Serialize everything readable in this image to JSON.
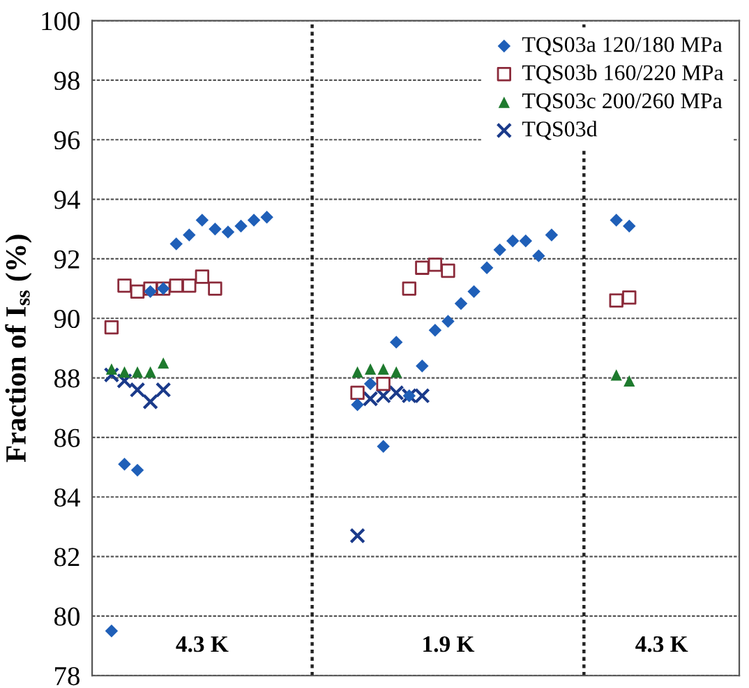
{
  "chart_data": {
    "type": "scatter",
    "ylabel": "Fraction of I$_{ss}$ (%)",
    "ylim": [
      78,
      100
    ],
    "yticks": [
      78,
      80,
      82,
      84,
      86,
      88,
      90,
      92,
      94,
      96,
      98,
      100
    ],
    "tick_labels": "y",
    "grid": "y",
    "legend": "top right",
    "annotations": [
      "4.3 K",
      "1.9 K",
      "4.3 K"
    ],
    "categories": [
      null,
      null,
      null,
      null,
      null,
      null,
      null,
      null,
      null,
      null,
      null,
      null,
      null,
      null,
      null,
      null,
      null,
      null,
      null,
      null,
      null,
      null,
      null,
      null,
      null,
      null,
      null,
      null,
      null,
      null,
      null,
      null,
      null,
      null,
      null,
      null,
      null,
      null,
      null,
      null,
      null,
      null,
      null,
      null,
      null,
      null,
      null,
      null,
      null,
      null
    ],
    "series": [
      {
        "name": "TQS03a 120/180 MPa",
        "color": "#1f5fb8",
        "marker": "diamond",
        "values": [
          null,
          79.5,
          85.1,
          84.9,
          90.9,
          91.0,
          92.5,
          92.8,
          93.3,
          93.0,
          92.9,
          93.1,
          93.3,
          93.4,
          null,
          null,
          null,
          null,
          null,
          null,
          87.1,
          87.8,
          85.7,
          89.2,
          87.4,
          88.4,
          89.6,
          89.9,
          90.5,
          90.9,
          91.7,
          92.3,
          92.6,
          92.6,
          92.1,
          92.8,
          null,
          null,
          null,
          null,
          93.3,
          93.1,
          null,
          null,
          null,
          null,
          null,
          null,
          null,
          null
        ]
      },
      {
        "name": "TQS03b 160/220 MPa",
        "color": "#8b2a3a",
        "marker": "square",
        "values": [
          null,
          89.7,
          91.1,
          90.9,
          91.0,
          91.0,
          91.1,
          91.1,
          91.4,
          91.0,
          null,
          null,
          null,
          null,
          null,
          null,
          null,
          null,
          null,
          null,
          87.5,
          null,
          87.8,
          null,
          91.0,
          91.7,
          91.8,
          91.6,
          null,
          null,
          null,
          null,
          null,
          null,
          null,
          null,
          null,
          null,
          null,
          null,
          90.6,
          90.7,
          null,
          null,
          null,
          null,
          null,
          null,
          null,
          null
        ]
      },
      {
        "name": "TQS03c 200/260 MPa",
        "color": "#1e7a2e",
        "marker": "triangle",
        "values": [
          null,
          88.3,
          88.2,
          88.2,
          88.2,
          88.5,
          null,
          null,
          null,
          null,
          null,
          null,
          null,
          null,
          null,
          null,
          null,
          null,
          null,
          null,
          88.2,
          88.3,
          88.3,
          88.2,
          null,
          null,
          null,
          null,
          null,
          null,
          null,
          null,
          null,
          null,
          null,
          null,
          null,
          null,
          null,
          null,
          88.1,
          87.9,
          null,
          null,
          null,
          null,
          null,
          null,
          null,
          null
        ]
      },
      {
        "name": "TQS03d",
        "color": "#1a3a8a",
        "marker": "cross",
        "values": [
          null,
          88.1,
          87.9,
          87.6,
          87.2,
          87.6,
          null,
          null,
          null,
          null,
          null,
          null,
          null,
          null,
          null,
          null,
          null,
          null,
          null,
          null,
          82.7,
          87.3,
          87.4,
          87.5,
          87.4,
          87.4,
          null,
          null,
          null,
          null,
          null,
          null,
          null,
          null,
          null,
          null,
          null,
          null,
          null,
          null,
          null,
          null,
          null,
          null,
          null,
          null,
          null,
          null,
          null,
          null
        ]
      }
    ]
  }
}
